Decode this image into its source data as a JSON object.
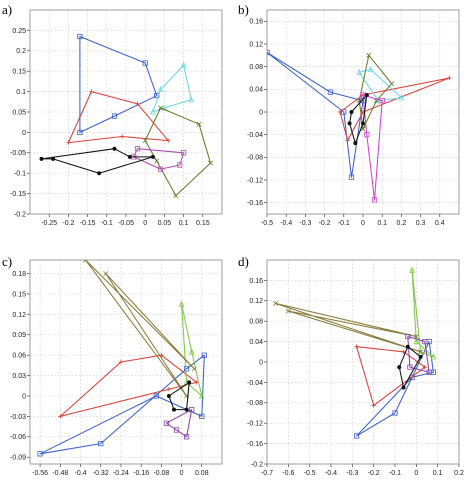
{
  "chart_data": [
    {
      "type": "scatter",
      "panel_label": "a)",
      "xlim": [
        -0.3,
        0.2
      ],
      "ylim": [
        -0.2,
        0.3
      ],
      "x_ticks": [
        {
          "value": -0.25,
          "label": "-0.25"
        },
        {
          "value": -0.2,
          "label": "-0.2"
        },
        {
          "value": -0.15,
          "label": "-0.15"
        },
        {
          "value": -0.1,
          "label": "-0.1"
        },
        {
          "value": -0.05,
          "label": "-0.05"
        },
        {
          "value": 0,
          "label": "0"
        },
        {
          "value": 0.05,
          "label": "0.05"
        },
        {
          "value": 0.1,
          "label": "0.1"
        },
        {
          "value": 0.15,
          "label": "0.15"
        }
      ],
      "y_ticks": [
        {
          "value": 0.25,
          "label": "0.25"
        },
        {
          "value": 0.2,
          "label": "0.2"
        },
        {
          "value": 0.15,
          "label": "0.15"
        },
        {
          "value": 0.1,
          "label": "0.1"
        },
        {
          "value": 0.05,
          "label": "0.05"
        },
        {
          "value": 0,
          "label": "0"
        },
        {
          "value": -0.05,
          "label": "-0.05"
        },
        {
          "value": -0.1,
          "label": "-0.1"
        },
        {
          "value": -0.15,
          "label": "-0.15"
        },
        {
          "value": -0.2,
          "label": "-0.2"
        }
      ],
      "grid": true,
      "series": [
        {
          "color": "#3a5fcd",
          "marker": "square",
          "points": [
            [
              -0.17,
              0.235
            ],
            [
              0,
              0.17
            ],
            [
              0.03,
              0.09
            ],
            [
              -0.08,
              0.04
            ],
            [
              -0.17,
              0.0
            ]
          ]
        },
        {
          "color": "#6fd6e0",
          "marker": "triangle",
          "points": [
            [
              0.04,
              0.105
            ],
            [
              0.1,
              0.165
            ],
            [
              0.12,
              0.08
            ],
            [
              0.05,
              0.06
            ],
            [
              0.02,
              0.05
            ]
          ]
        },
        {
          "color": "#d9403a",
          "marker": "plus",
          "points": [
            [
              -0.2,
              -0.025
            ],
            [
              -0.14,
              0.1
            ],
            [
              -0.02,
              0.07
            ],
            [
              0.06,
              -0.02
            ],
            [
              -0.06,
              -0.01
            ]
          ]
        },
        {
          "color": "#6b7a2a",
          "marker": "x",
          "points": [
            [
              0.04,
              0.06
            ],
            [
              0.14,
              0.02
            ],
            [
              0.17,
              -0.075
            ],
            [
              0.08,
              -0.155
            ],
            [
              0.03,
              -0.07
            ],
            [
              0.0,
              -0.02
            ]
          ]
        },
        {
          "color": "#b04fb0",
          "marker": "square",
          "points": [
            [
              -0.02,
              -0.04
            ],
            [
              0.1,
              -0.05
            ],
            [
              0.09,
              -0.08
            ],
            [
              0.04,
              -0.09
            ],
            [
              -0.03,
              -0.06
            ]
          ]
        },
        {
          "color": "#111111",
          "marker": "dot",
          "points": [
            [
              -0.27,
              -0.065
            ],
            [
              -0.08,
              -0.04
            ],
            [
              -0.04,
              -0.06
            ],
            [
              0.02,
              -0.06
            ],
            [
              -0.12,
              -0.1
            ],
            [
              -0.24,
              -0.065
            ]
          ]
        }
      ]
    },
    {
      "type": "scatter",
      "panel_label": "b)",
      "xlim": [
        -0.5,
        0.5
      ],
      "ylim": [
        -0.18,
        0.18
      ],
      "x_ticks": [
        {
          "value": -0.5,
          "label": "-0.5"
        },
        {
          "value": -0.4,
          "label": "-0.4"
        },
        {
          "value": -0.3,
          "label": "-0.3"
        },
        {
          "value": -0.2,
          "label": "-0.2"
        },
        {
          "value": -0.1,
          "label": "-0.1"
        },
        {
          "value": 0,
          "label": "0"
        },
        {
          "value": 0.1,
          "label": "0.1"
        },
        {
          "value": 0.2,
          "label": "0.2"
        },
        {
          "value": 0.3,
          "label": "0.3"
        },
        {
          "value": 0.4,
          "label": "0.4"
        }
      ],
      "y_ticks": [
        {
          "value": 0.16,
          "label": "0.16"
        },
        {
          "value": 0.12,
          "label": "0.12"
        },
        {
          "value": 0.08,
          "label": "0.08"
        },
        {
          "value": 0.04,
          "label": "0.04"
        },
        {
          "value": 0,
          "label": "0"
        },
        {
          "value": -0.04,
          "label": "-0.04"
        },
        {
          "value": -0.08,
          "label": "-0.08"
        },
        {
          "value": -0.12,
          "label": "-0.12"
        },
        {
          "value": -0.16,
          "label": "-0.16"
        }
      ],
      "grid": true,
      "series": [
        {
          "color": "#3a5fcd",
          "marker": "square",
          "points": [
            [
              -0.5,
              0.105
            ],
            [
              -0.17,
              0.035
            ],
            [
              0.0,
              0.02
            ],
            [
              -0.06,
              -0.115
            ],
            [
              -0.1,
              0.0
            ]
          ]
        },
        {
          "color": "#d9403a",
          "marker": "plus",
          "points": [
            [
              -0.12,
              0.0
            ],
            [
              0.0,
              0.03
            ],
            [
              0.45,
              0.06
            ],
            [
              0.0,
              0.0
            ],
            [
              -0.08,
              -0.05
            ]
          ]
        },
        {
          "color": "#6fd6e0",
          "marker": "triangle",
          "points": [
            [
              -0.02,
              0.07
            ],
            [
              0.04,
              0.075
            ],
            [
              0.2,
              0.025
            ],
            [
              0.08,
              0.02
            ]
          ]
        },
        {
          "color": "#6b7a2a",
          "marker": "x",
          "points": [
            [
              -0.02,
              0.02
            ],
            [
              0.03,
              0.1
            ],
            [
              0.15,
              0.05
            ],
            [
              0.07,
              0.02
            ],
            [
              0.0,
              -0.03
            ]
          ]
        },
        {
          "color": "#cc44cc",
          "marker": "square",
          "points": [
            [
              0.0,
              0.03
            ],
            [
              0.1,
              0.02
            ],
            [
              0.06,
              -0.155
            ],
            [
              0.02,
              -0.04
            ]
          ]
        },
        {
          "color": "#111111",
          "marker": "dot",
          "points": [
            [
              -0.06,
              0.0
            ],
            [
              0.02,
              0.03
            ],
            [
              0.0,
              -0.02
            ],
            [
              -0.04,
              -0.055
            ],
            [
              -0.07,
              -0.02
            ]
          ]
        }
      ]
    },
    {
      "type": "scatter",
      "panel_label": "c)",
      "xlim": [
        -0.6,
        0.16
      ],
      "ylim": [
        -0.1,
        0.2
      ],
      "x_ticks": [
        {
          "value": -0.56,
          "label": "-0.56"
        },
        {
          "value": -0.48,
          "label": "-0.48"
        },
        {
          "value": -0.4,
          "label": "-0.4"
        },
        {
          "value": -0.32,
          "label": "-0.32"
        },
        {
          "value": -0.24,
          "label": "-0.24"
        },
        {
          "value": -0.16,
          "label": "-0.16"
        },
        {
          "value": -0.08,
          "label": "-0.08"
        },
        {
          "value": 0,
          "label": "0"
        },
        {
          "value": 0.08,
          "label": "0.08"
        }
      ],
      "y_ticks": [
        {
          "value": 0.18,
          "label": "0.18"
        },
        {
          "value": 0.15,
          "label": "0.15"
        },
        {
          "value": 0.12,
          "label": "0.12"
        },
        {
          "value": 0.09,
          "label": "0.09"
        },
        {
          "value": 0.06,
          "label": "0.06"
        },
        {
          "value": 0.03,
          "label": "0.03"
        },
        {
          "value": 0,
          "label": "0"
        },
        {
          "value": -0.03,
          "label": "-0.03"
        },
        {
          "value": -0.06,
          "label": "-0.06"
        },
        {
          "value": -0.09,
          "label": "-0.09"
        }
      ],
      "grid": true,
      "series": [
        {
          "color": "#3a5fcd",
          "marker": "square",
          "points": [
            [
              -0.56,
              -0.085
            ],
            [
              -0.32,
              -0.07
            ],
            [
              0.02,
              0.04
            ],
            [
              0.09,
              0.06
            ],
            [
              0.08,
              -0.03
            ],
            [
              -0.1,
              0.0
            ]
          ]
        },
        {
          "color": "#d9403a",
          "marker": "plus",
          "points": [
            [
              -0.48,
              -0.03
            ],
            [
              -0.24,
              0.05
            ],
            [
              -0.08,
              0.06
            ],
            [
              0.06,
              0.02
            ],
            [
              -0.05,
              0.01
            ]
          ]
        },
        {
          "color": "#7ec94a",
          "marker": "triangle",
          "points": [
            [
              0.0,
              0.135
            ],
            [
              0.04,
              0.065
            ],
            [
              0.08,
              0.0
            ],
            [
              0.02,
              0.02
            ]
          ]
        },
        {
          "color": "#8a7a3a",
          "marker": "x",
          "points": [
            [
              -0.38,
              0.2
            ],
            [
              0.02,
              0.0
            ],
            [
              -0.3,
              0.18
            ],
            [
              0.05,
              0.04
            ]
          ]
        },
        {
          "color": "#8844aa",
          "marker": "square",
          "points": [
            [
              -0.06,
              -0.04
            ],
            [
              0.04,
              -0.02
            ],
            [
              0.02,
              -0.06
            ],
            [
              -0.02,
              -0.05
            ]
          ]
        },
        {
          "color": "#111111",
          "marker": "dot",
          "points": [
            [
              -0.05,
              0.0
            ],
            [
              0.03,
              0.02
            ],
            [
              0.02,
              -0.02
            ],
            [
              -0.03,
              -0.02
            ]
          ]
        }
      ]
    },
    {
      "type": "scatter",
      "panel_label": "d)",
      "xlim": [
        -0.7,
        0.2
      ],
      "ylim": [
        -0.2,
        0.2
      ],
      "x_ticks": [
        {
          "value": -0.7,
          "label": "-0.7"
        },
        {
          "value": -0.6,
          "label": "-0.6"
        },
        {
          "value": -0.5,
          "label": "-0.5"
        },
        {
          "value": -0.4,
          "label": "-0.4"
        },
        {
          "value": -0.3,
          "label": "-0.3"
        },
        {
          "value": -0.2,
          "label": "-0.2"
        },
        {
          "value": -0.1,
          "label": "-0.1"
        },
        {
          "value": 0,
          "label": "0"
        },
        {
          "value": 0.1,
          "label": "0.1"
        },
        {
          "value": 0.2,
          "label": "0.2"
        }
      ],
      "y_ticks": [
        {
          "value": 0.16,
          "label": "0.16"
        },
        {
          "value": 0.12,
          "label": "0.12"
        },
        {
          "value": 0.08,
          "label": "0.08"
        },
        {
          "value": 0.04,
          "label": "0.04"
        },
        {
          "value": 0,
          "label": "0"
        },
        {
          "value": -0.04,
          "label": "-0.04"
        },
        {
          "value": -0.08,
          "label": "-0.08"
        },
        {
          "value": -0.12,
          "label": "-0.12"
        },
        {
          "value": -0.16,
          "label": "-0.16"
        },
        {
          "value": -0.2,
          "label": "-0.2"
        }
      ],
      "grid": true,
      "series": [
        {
          "color": "#3a5fcd",
          "marker": "square",
          "points": [
            [
              -0.28,
              -0.145
            ],
            [
              -0.1,
              -0.1
            ],
            [
              0.06,
              0.04
            ],
            [
              0.08,
              -0.02
            ],
            [
              -0.02,
              -0.03
            ]
          ]
        },
        {
          "color": "#d9403a",
          "marker": "plus",
          "points": [
            [
              -0.2,
              -0.085
            ],
            [
              -0.28,
              0.03
            ],
            [
              -0.06,
              0.02
            ],
            [
              0.04,
              -0.01
            ]
          ]
        },
        {
          "color": "#7ec94a",
          "marker": "triangle",
          "points": [
            [
              -0.02,
              0.18
            ],
            [
              0.02,
              0.02
            ],
            [
              0.08,
              0.01
            ],
            [
              0.0,
              0.04
            ]
          ]
        },
        {
          "color": "#8a7a3a",
          "marker": "x",
          "points": [
            [
              -0.66,
              0.115
            ],
            [
              0.02,
              0.02
            ],
            [
              -0.6,
              0.1
            ],
            [
              0.0,
              0.05
            ]
          ]
        },
        {
          "color": "#8844aa",
          "marker": "square",
          "points": [
            [
              -0.04,
              0.05
            ],
            [
              0.04,
              0.04
            ],
            [
              0.06,
              -0.02
            ],
            [
              -0.03,
              -0.01
            ]
          ]
        },
        {
          "color": "#111111",
          "marker": "dot",
          "points": [
            [
              -0.04,
              0.03
            ],
            [
              0.02,
              0.01
            ],
            [
              -0.06,
              -0.05
            ],
            [
              -0.08,
              -0.01
            ]
          ]
        }
      ]
    }
  ]
}
